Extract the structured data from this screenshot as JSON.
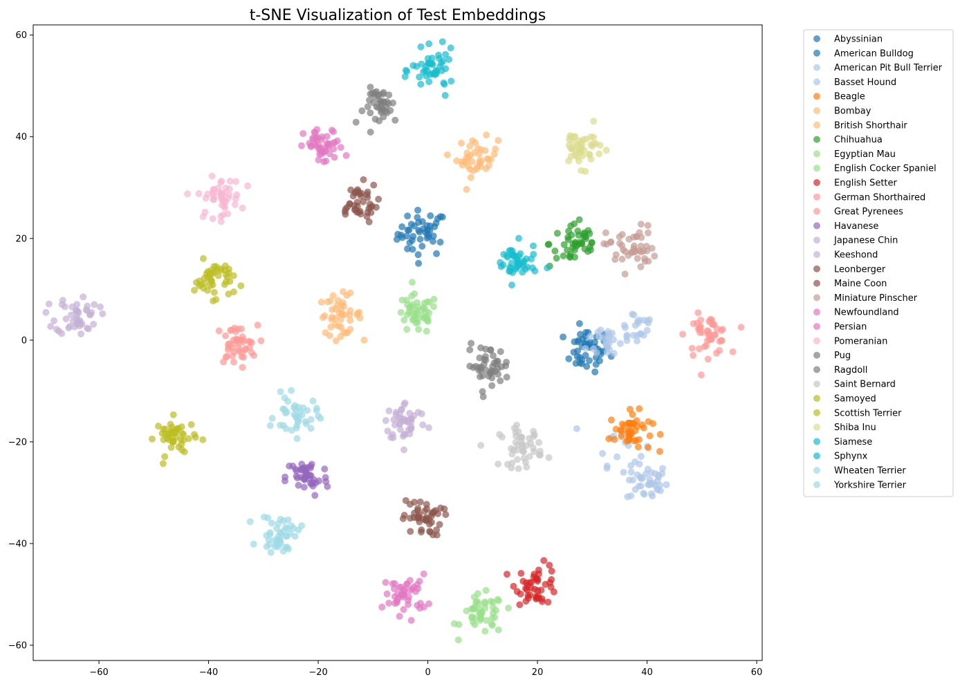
{
  "chart_data": {
    "type": "scatter",
    "title": "t-SNE Visualization of Test Embeddings",
    "xlabel": "",
    "ylabel": "",
    "xlim": [
      -72,
      61
    ],
    "ylim": [
      -63,
      62
    ],
    "xticks": [
      -60,
      -40,
      -20,
      0,
      20,
      40,
      60
    ],
    "yticks": [
      -60,
      -40,
      -20,
      0,
      20,
      40,
      60
    ],
    "xtick_labels": [
      "−60",
      "−40",
      "−20",
      "0",
      "20",
      "40",
      "60"
    ],
    "ytick_labels": [
      "−60",
      "−40",
      "−20",
      "0",
      "20",
      "40",
      "60"
    ],
    "grid": false,
    "legend_position": "outside-right-top",
    "marker_alpha": 0.7,
    "series": [
      {
        "name": "Abyssinian",
        "color": "#1f77b4",
        "clusters": [
          {
            "x": -1,
            "y": 21,
            "r": 3.0,
            "n": 45
          }
        ]
      },
      {
        "name": "American Bulldog",
        "color": "#1f77b4",
        "clusters": [
          {
            "x": 29,
            "y": -2,
            "r": 2.8,
            "n": 45
          }
        ]
      },
      {
        "name": "American Pit Bull Terrier",
        "color": "#aec7e8",
        "clusters": [
          {
            "x": 40,
            "y": -28,
            "r": 2.5,
            "n": 40
          },
          {
            "x": 38,
            "y": 3,
            "r": 2.5,
            "n": 20
          }
        ]
      },
      {
        "name": "Basset Hound",
        "color": "#aec7e8",
        "clusters": [
          {
            "x": 33,
            "y": 0,
            "r": 2.6,
            "n": 25
          },
          {
            "x": 35,
            "y": -20,
            "r": 3.0,
            "n": 15
          }
        ]
      },
      {
        "name": "Beagle",
        "color": "#ff7f0e",
        "clusters": [
          {
            "x": 37,
            "y": -18,
            "r": 2.6,
            "n": 45
          }
        ]
      },
      {
        "name": "Bombay",
        "color": "#ffbb78",
        "clusters": [
          {
            "x": 9,
            "y": 36,
            "r": 2.5,
            "n": 40
          }
        ]
      },
      {
        "name": "British Shorthair",
        "color": "#ffbb78",
        "clusters": [
          {
            "x": -16,
            "y": 5,
            "r": 2.6,
            "n": 45
          }
        ]
      },
      {
        "name": "Chihuahua",
        "color": "#2ca02c",
        "clusters": [
          {
            "x": 27,
            "y": 19,
            "r": 3.2,
            "n": 45
          }
        ]
      },
      {
        "name": "Egyptian Mau",
        "color": "#98df8a",
        "clusters": [
          {
            "x": -2,
            "y": 5,
            "r": 2.6,
            "n": 45
          }
        ]
      },
      {
        "name": "English Cocker Spaniel",
        "color": "#98df8a",
        "clusters": [
          {
            "x": 10,
            "y": -54,
            "r": 2.6,
            "n": 45
          }
        ]
      },
      {
        "name": "English Setter",
        "color": "#d62728",
        "clusters": [
          {
            "x": 20,
            "y": -48,
            "r": 2.6,
            "n": 45
          }
        ]
      },
      {
        "name": "German Shorthaired",
        "color": "#ff9896",
        "clusters": [
          {
            "x": 51,
            "y": 1,
            "r": 2.6,
            "n": 45
          }
        ]
      },
      {
        "name": "Great Pyrenees",
        "color": "#ff9896",
        "clusters": [
          {
            "x": -35,
            "y": -1,
            "r": 2.6,
            "n": 45
          }
        ]
      },
      {
        "name": "Havanese",
        "color": "#9467bd",
        "clusters": [
          {
            "x": -22,
            "y": -27,
            "r": 2.6,
            "n": 45
          }
        ]
      },
      {
        "name": "Japanese Chin",
        "color": "#c5b0d5",
        "clusters": [
          {
            "x": -4,
            "y": -16,
            "r": 2.6,
            "n": 45
          }
        ]
      },
      {
        "name": "Keeshond",
        "color": "#c5b0d5",
        "clusters": [
          {
            "x": -64,
            "y": 5,
            "r": 2.6,
            "n": 45
          }
        ]
      },
      {
        "name": "Leonberger",
        "color": "#8c564b",
        "clusters": [
          {
            "x": -13,
            "y": 27,
            "r": 2.6,
            "n": 40
          }
        ]
      },
      {
        "name": "Maine Coon",
        "color": "#8c564b",
        "clusters": [
          {
            "x": -1,
            "y": -35,
            "r": 2.4,
            "n": 45
          }
        ]
      },
      {
        "name": "Miniature Pinscher",
        "color": "#c49c94",
        "clusters": [
          {
            "x": 37,
            "y": 18,
            "r": 3.0,
            "n": 45
          }
        ]
      },
      {
        "name": "Newfoundland",
        "color": "#e377c2",
        "clusters": [
          {
            "x": -19,
            "y": 38,
            "r": 2.4,
            "n": 45
          }
        ]
      },
      {
        "name": "Persian",
        "color": "#e377c2",
        "clusters": [
          {
            "x": -4,
            "y": -50,
            "r": 2.6,
            "n": 45
          }
        ]
      },
      {
        "name": "Pomeranian",
        "color": "#f7b6d2",
        "clusters": [
          {
            "x": -38,
            "y": 28,
            "r": 2.6,
            "n": 45
          }
        ]
      },
      {
        "name": "Pug",
        "color": "#7f7f7f",
        "clusters": [
          {
            "x": 11,
            "y": -5,
            "r": 2.6,
            "n": 45
          }
        ]
      },
      {
        "name": "Ragdoll",
        "color": "#7f7f7f",
        "clusters": [
          {
            "x": -8,
            "y": 46,
            "r": 2.4,
            "n": 40
          }
        ]
      },
      {
        "name": "Saint Bernard",
        "color": "#c7c7c7",
        "clusters": [
          {
            "x": 17,
            "y": -21,
            "r": 2.6,
            "n": 45
          }
        ]
      },
      {
        "name": "Samoyed",
        "color": "#bcbd22",
        "clusters": [
          {
            "x": -46,
            "y": -19,
            "r": 2.4,
            "n": 45
          }
        ]
      },
      {
        "name": "Scottish Terrier",
        "color": "#bcbd22",
        "clusters": [
          {
            "x": -39,
            "y": 12,
            "r": 2.4,
            "n": 45
          }
        ]
      },
      {
        "name": "Shiba Inu",
        "color": "#dbdb8d",
        "clusters": [
          {
            "x": 28,
            "y": 38,
            "r": 2.6,
            "n": 45
          }
        ]
      },
      {
        "name": "Siamese",
        "color": "#17becf",
        "clusters": [
          {
            "x": 1,
            "y": 53,
            "r": 2.6,
            "n": 45
          }
        ]
      },
      {
        "name": "Sphynx",
        "color": "#17becf",
        "clusters": [
          {
            "x": 16,
            "y": 15,
            "r": 2.6,
            "n": 45
          }
        ]
      },
      {
        "name": "Wheaten Terrier",
        "color": "#9edae5",
        "clusters": [
          {
            "x": -24,
            "y": -15,
            "r": 2.6,
            "n": 40
          }
        ]
      },
      {
        "name": "Yorkshire Terrier",
        "color": "#9edae5",
        "clusters": [
          {
            "x": -27,
            "y": -38,
            "r": 2.4,
            "n": 45
          }
        ]
      }
    ]
  }
}
